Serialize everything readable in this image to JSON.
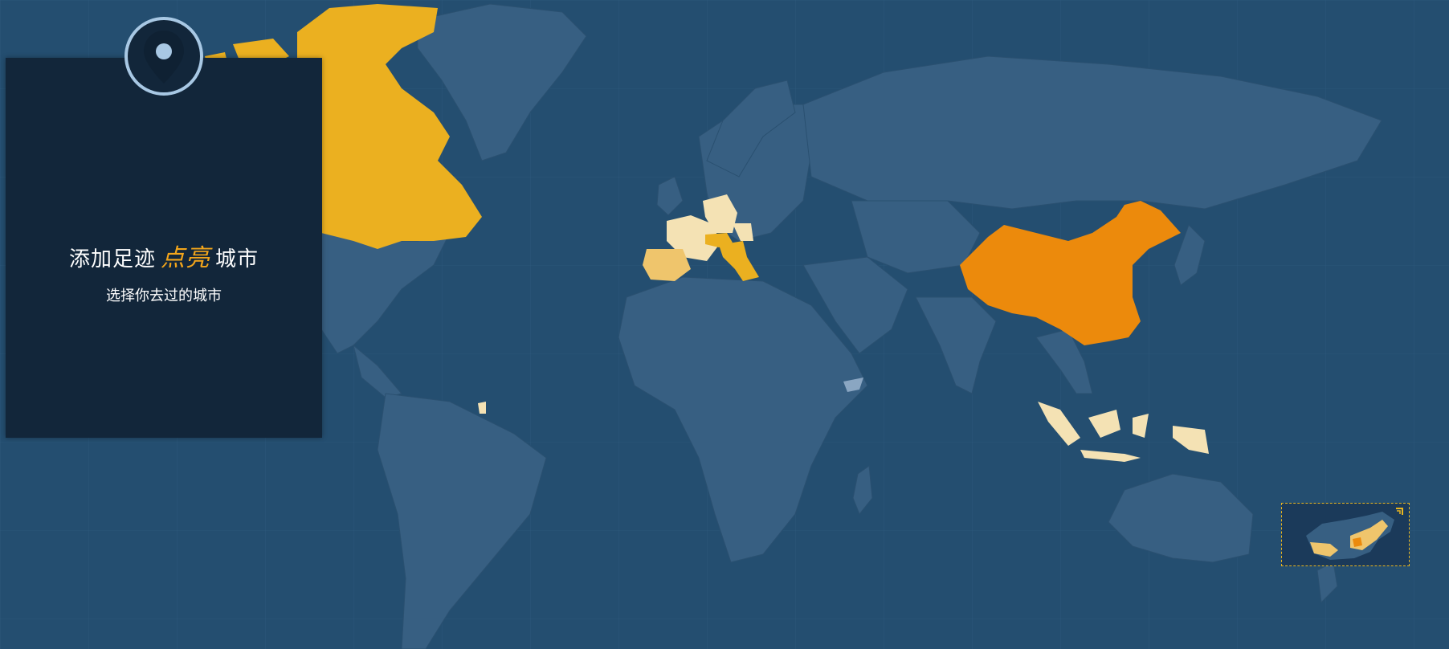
{
  "panel": {
    "title_prefix": "添加足迹",
    "title_highlight": "点亮",
    "title_suffix": "城市",
    "subtitle": "选择你去过的城市"
  },
  "icons": {
    "panel_pin": "map-pin-icon",
    "minimap_toggle": "collapse-corner-icon"
  },
  "colors": {
    "ocean": "#244e70",
    "land": "#375f82",
    "panel_bg": "#12263a",
    "visited_light": "#f4e2b4",
    "visited_mid": "#efc56c",
    "visited_gold": "#ebb020",
    "visited_strong": "#ec8a0c",
    "highlight_text": "#f2a51b",
    "minimap_border": "#e9b520"
  },
  "visited_regions": [
    {
      "name": "Canada",
      "level": "visited_gold"
    },
    {
      "name": "France",
      "level": "visited_light"
    },
    {
      "name": "Germany",
      "level": "visited_light"
    },
    {
      "name": "Spain",
      "level": "visited_mid"
    },
    {
      "name": "Italy",
      "level": "visited_gold"
    },
    {
      "name": "Switzerland",
      "level": "visited_gold"
    },
    {
      "name": "China",
      "level": "visited_strong"
    },
    {
      "name": "Indonesia",
      "level": "visited_light"
    },
    {
      "name": "Papua New Guinea",
      "level": "visited_light"
    },
    {
      "name": "Somalia",
      "level": "neutral"
    }
  ]
}
